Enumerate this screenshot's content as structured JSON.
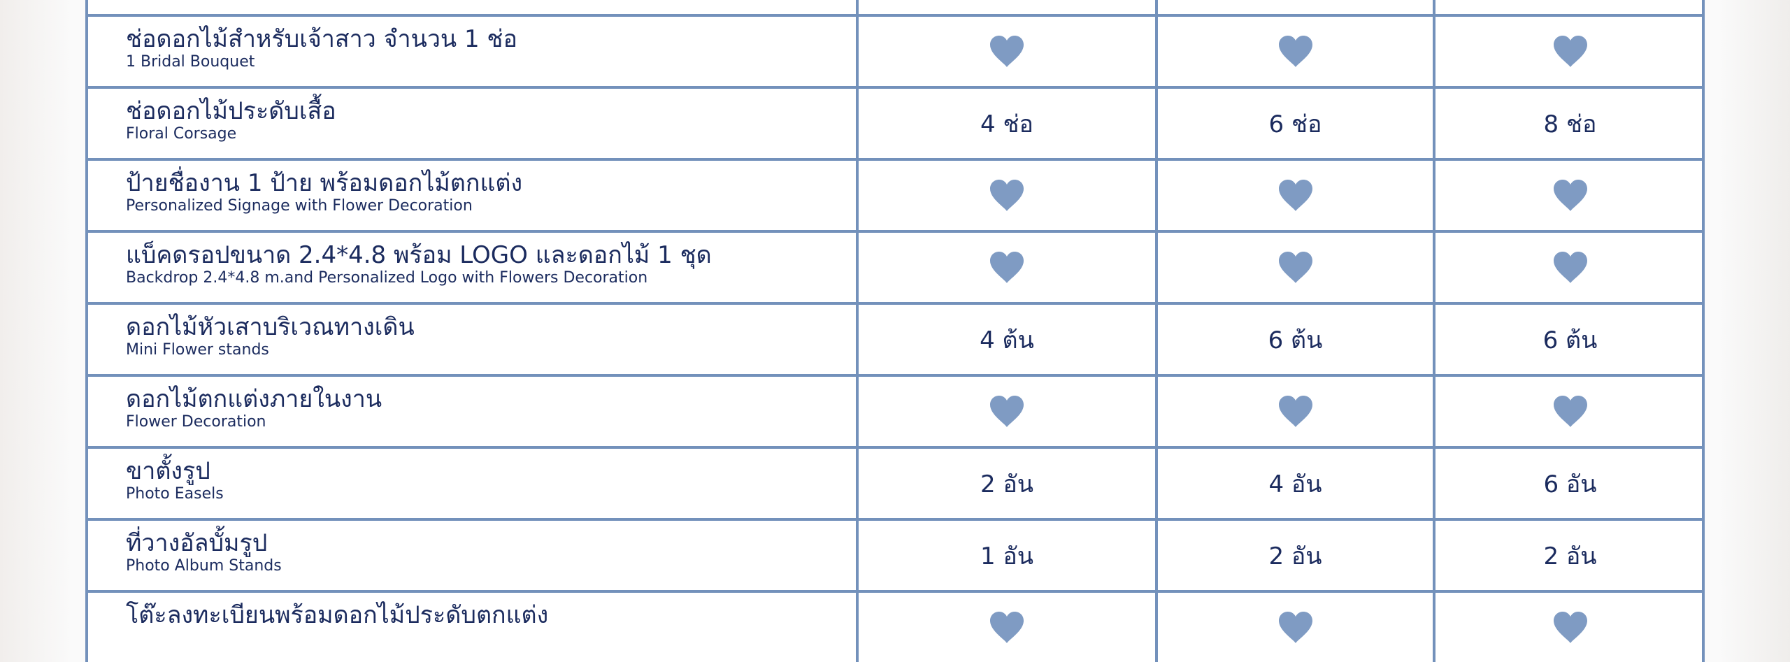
{
  "colors": {
    "border": "#7391bb",
    "heart": "#7f9bc3",
    "text": "#1b2b5e"
  },
  "rows": [
    {
      "th": "",
      "en": "",
      "values": [
        "",
        "",
        ""
      ]
    },
    {
      "th": "ช่อดอกไม้สำหรับเจ้าสาว จำนวน 1 ช่อ",
      "en": "1 Bridal Bouquet",
      "values": [
        "heart",
        "heart",
        "heart"
      ]
    },
    {
      "th": "ช่อดอกไม้ประดับเสื้อ",
      "en": "Floral Corsage",
      "values": [
        "4 ช่อ",
        "6 ช่อ",
        "8 ช่อ"
      ]
    },
    {
      "th": "ป้ายชื่องาน 1 ป้าย พร้อมดอกไม้ตกแต่ง",
      "en": "Personalized Signage with Flower Decoration",
      "values": [
        "heart",
        "heart",
        "heart"
      ]
    },
    {
      "th": "แบ็คดรอปขนาด 2.4*4.8 พร้อม LOGO และดอกไม้ 1 ชุด",
      "en": "Backdrop 2.4*4.8 m.and Personalized Logo with Flowers Decoration",
      "values": [
        "heart",
        "heart",
        "heart"
      ]
    },
    {
      "th": "ดอกไม้หัวเสาบริเวณทางเดิน",
      "en": "Mini Flower stands",
      "values": [
        "4 ต้น",
        "6 ต้น",
        "6 ต้น"
      ]
    },
    {
      "th": "ดอกไม้ตกแต่งภายในงาน",
      "en": "Flower Decoration",
      "values": [
        "heart",
        "heart",
        "heart"
      ]
    },
    {
      "th": "ขาตั้งรูป",
      "en": "Photo Easels",
      "values": [
        "2 อัน",
        "4 อัน",
        "6 อัน"
      ]
    },
    {
      "th": "ที่วางอัลบั้มรูป",
      "en": "Photo Album Stands",
      "values": [
        "1 อัน",
        "2 อัน",
        "2 อัน"
      ]
    },
    {
      "th": "โต๊ะลงทะเบียนพร้อมดอกไม้ประดับตกแต่ง",
      "en": "",
      "values": [
        "heart",
        "heart",
        "heart"
      ]
    }
  ]
}
